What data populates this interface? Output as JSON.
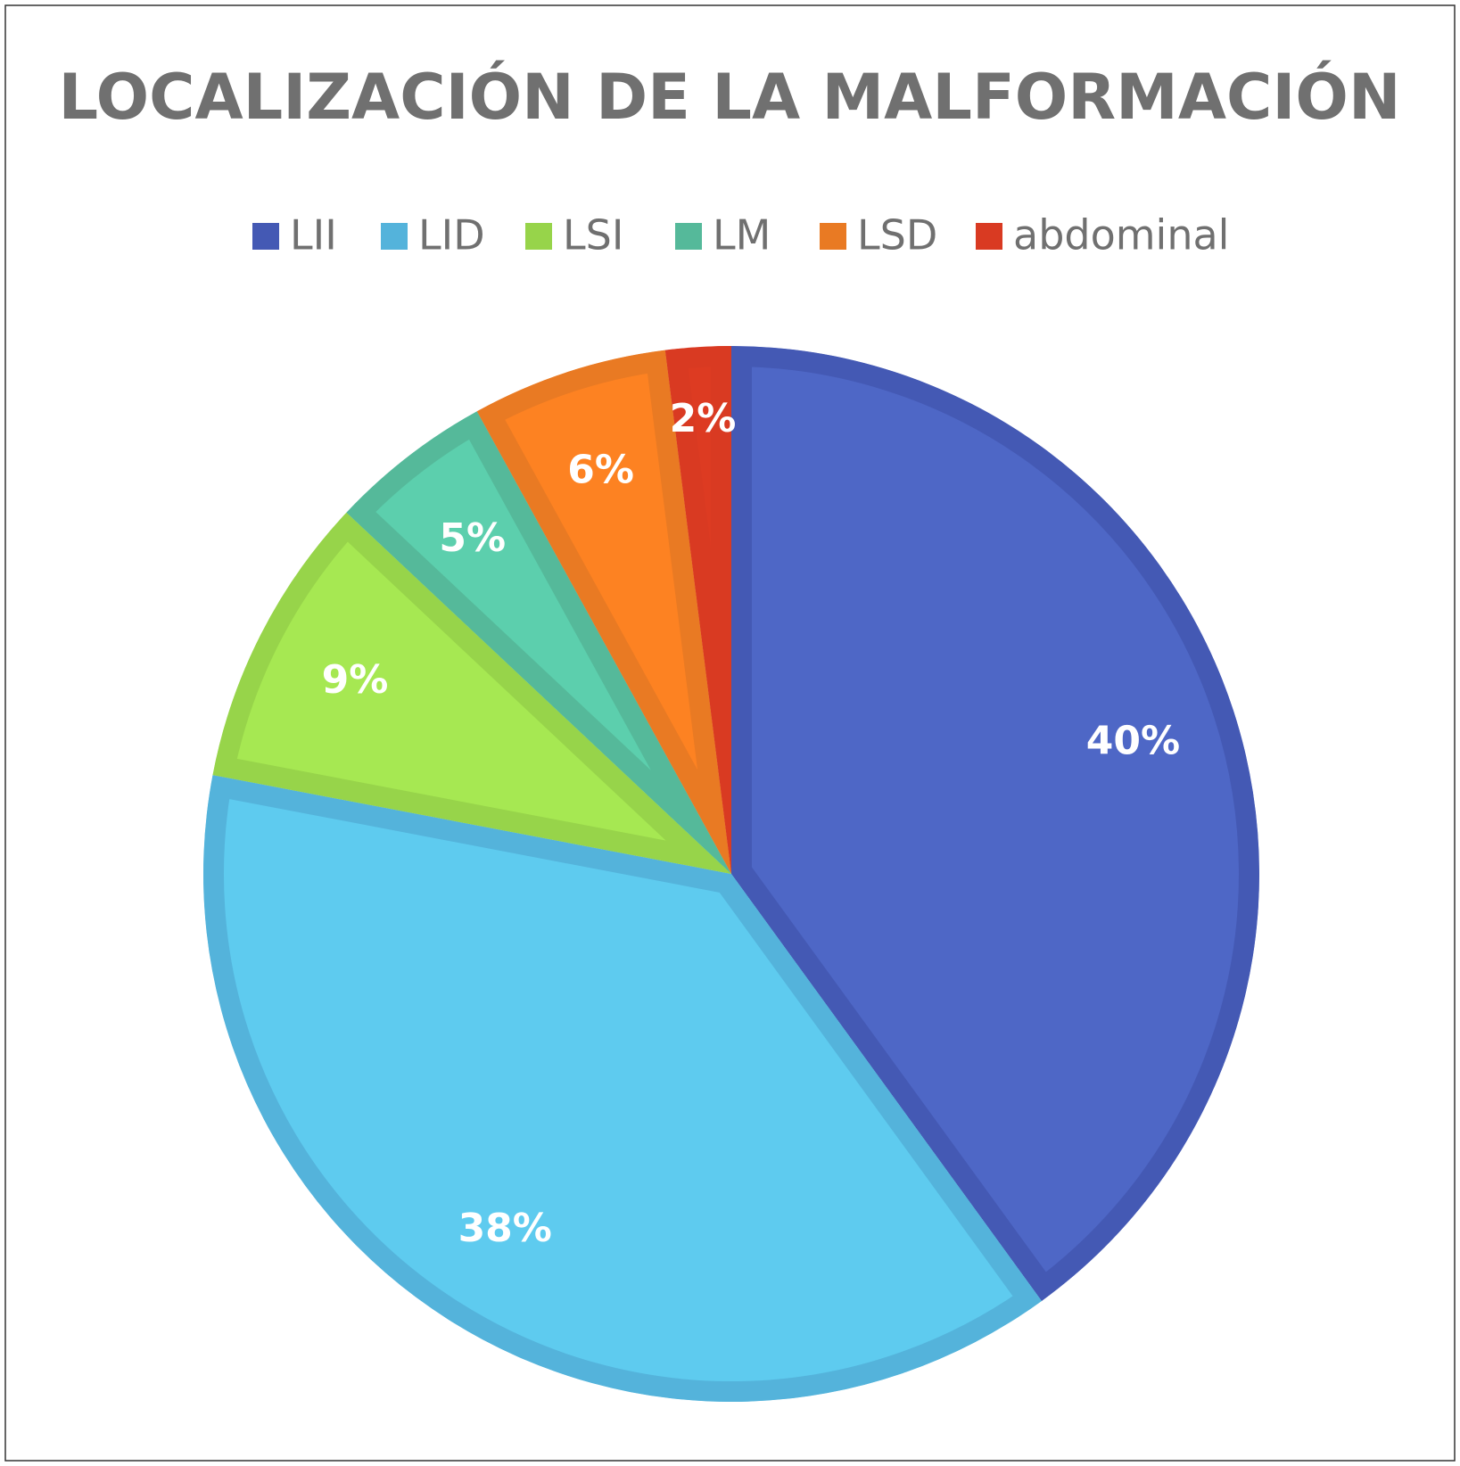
{
  "chart_data": {
    "type": "pie",
    "title": "LOCALIZACIÓN DE LA MALFORMACIÓN",
    "categories": [
      "LII",
      "LID",
      "LSI",
      "LM",
      "LSD",
      "abdominal"
    ],
    "values": [
      40,
      38,
      9,
      5,
      6,
      2
    ],
    "value_labels": [
      "40%",
      "38%",
      "9%",
      "5%",
      "6%",
      "2%"
    ],
    "colors": [
      "#4e67c6",
      "#5ecbef",
      "#a6e852",
      "#5ccfad",
      "#fd8222",
      "#dd3b22"
    ],
    "border_colors": [
      "#4459b4",
      "#54b3db",
      "#97d44a",
      "#55b99a",
      "#e97a23",
      "#d93a22"
    ],
    "legend": "top"
  }
}
